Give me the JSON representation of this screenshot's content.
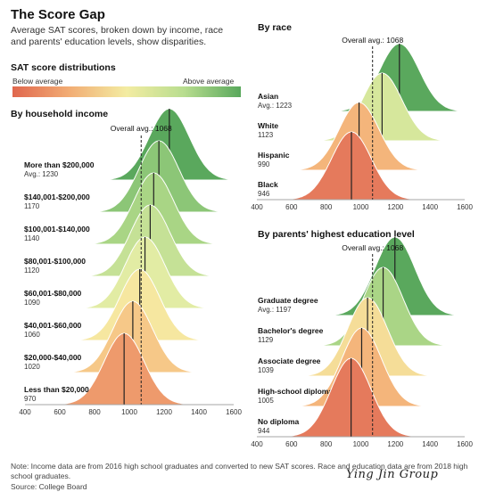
{
  "header": {
    "title": "The Score Gap",
    "subtitle": "Average SAT scores, broken down by income, race and parents' education levels, show disparities."
  },
  "legend": {
    "title": "SAT score distributions",
    "low_label": "Below average",
    "high_label": "Above average"
  },
  "footer": {
    "note": "Note: Income data are from 2016 high school graduates and converted to new SAT scores. Race and education data are from 2018 high school graduates.",
    "source": "Source: College Board",
    "watermark": "Ying Jin Group"
  },
  "chart_data": [
    {
      "type": "area",
      "title": "By household income",
      "xlim": [
        400,
        1600
      ],
      "x_ticks": [
        400,
        600,
        800,
        1000,
        1200,
        1400,
        1600
      ],
      "reference": {
        "label": "Overall avg.: 1068",
        "value": 1068
      },
      "series": [
        {
          "name": "More than $200,000",
          "value_label": "Avg.: 1230",
          "mean": 1230,
          "color": "#5aa85d"
        },
        {
          "name": "$140,001-$200,000",
          "value_label": "1170",
          "mean": 1170,
          "color": "#8cc677"
        },
        {
          "name": "$100,001-$140,000",
          "value_label": "1140",
          "mean": 1140,
          "color": "#a9d585"
        },
        {
          "name": "$80,001-$100,000",
          "value_label": "1120",
          "mean": 1120,
          "color": "#c5e196"
        },
        {
          "name": "$60,001-$80,000",
          "value_label": "1090",
          "mean": 1090,
          "color": "#e2eca4"
        },
        {
          "name": "$40,001-$60,000",
          "value_label": "1060",
          "mean": 1060,
          "color": "#f6e7a0"
        },
        {
          "name": "$20,000-$40,000",
          "value_label": "1020",
          "mean": 1020,
          "color": "#f6c888"
        },
        {
          "name": "Less than $20,000",
          "value_label": "970",
          "mean": 970,
          "color": "#ee9a6c"
        }
      ]
    },
    {
      "type": "area",
      "title": "By race",
      "xlim": [
        400,
        1600
      ],
      "x_ticks": [
        400,
        600,
        800,
        1000,
        1200,
        1400,
        1600
      ],
      "reference": {
        "label": "Overall avg.: 1068",
        "value": 1068
      },
      "series": [
        {
          "name": "Asian",
          "value_label": "Avg.: 1223",
          "mean": 1223,
          "color": "#5aa85d"
        },
        {
          "name": "White",
          "value_label": "1123",
          "mean": 1123,
          "color": "#d6e79c"
        },
        {
          "name": "Hispanic",
          "value_label": "990",
          "mean": 990,
          "color": "#f4b57b"
        },
        {
          "name": "Black",
          "value_label": "946",
          "mean": 946,
          "color": "#e57a5c"
        }
      ]
    },
    {
      "type": "area",
      "title": "By parents' highest education level",
      "xlim": [
        400,
        1600
      ],
      "x_ticks": [
        400,
        600,
        800,
        1000,
        1200,
        1400,
        1600
      ],
      "reference": {
        "label": "Overall avg.: 1068",
        "value": 1068
      },
      "series": [
        {
          "name": "Graduate degree",
          "value_label": "Avg.: 1197",
          "mean": 1197,
          "color": "#5aa85d"
        },
        {
          "name": "Bachelor's degree",
          "value_label": "1129",
          "mean": 1129,
          "color": "#aad586"
        },
        {
          "name": "Associate degree",
          "value_label": "1039",
          "mean": 1039,
          "color": "#f5dd98"
        },
        {
          "name": "High-school diploma",
          "value_label": "1005",
          "mean": 1005,
          "color": "#f4b57b"
        },
        {
          "name": "No diploma",
          "value_label": "944",
          "mean": 944,
          "color": "#e57a5c"
        }
      ]
    }
  ]
}
